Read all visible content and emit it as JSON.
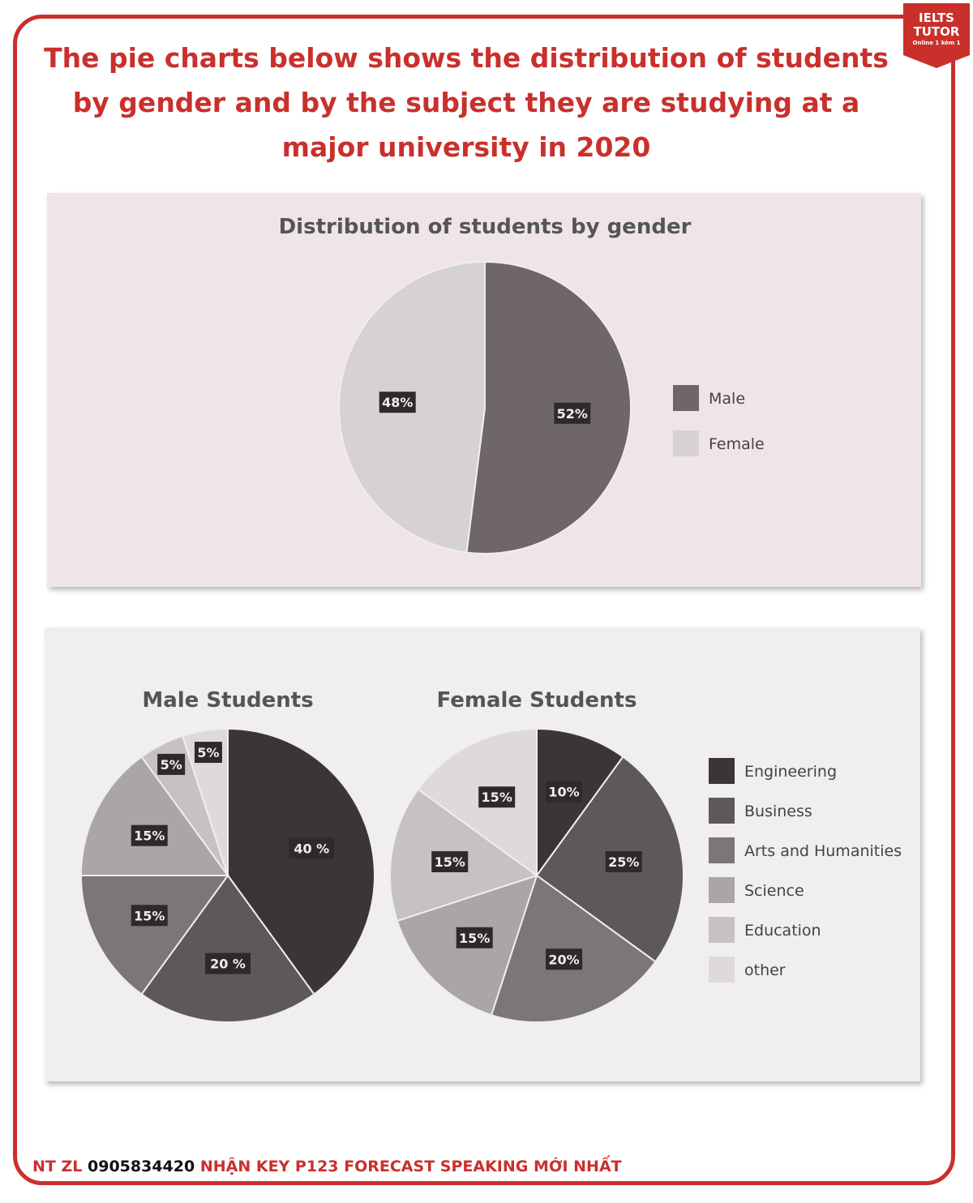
{
  "title": "The pie charts below shows the distribution of students by gender and by the subject they are studying at a major university in 2020",
  "logo": {
    "line1": "IELTS",
    "line2": "TUTOR",
    "line3": "Online 1 kèm 1"
  },
  "footer": {
    "prefix": "NT ZL",
    "phone": "0905834420",
    "text": "NHẬN KEY P123 FORECAST SPEAKING MỚI NHẤT"
  },
  "chart_data": [
    {
      "type": "pie",
      "title": "Distribution of students by gender",
      "categories": [
        "Male",
        "Female"
      ],
      "values": [
        52,
        48
      ],
      "labels": [
        "52%",
        "48%"
      ],
      "colors": [
        "#6e6668",
        "#d6d1d3"
      ],
      "legend": "right"
    },
    {
      "type": "pie",
      "title": "Male Students",
      "categories": [
        "Engineering",
        "Business",
        "Arts and Humanities",
        "Science",
        "Education",
        "other"
      ],
      "values": [
        40,
        20,
        15,
        15,
        5,
        5
      ],
      "labels": [
        "40 %",
        "20 %",
        "15%",
        "15%",
        "5%",
        "5%"
      ],
      "colors": [
        "#3b3536",
        "#5d585c",
        "#7a767a",
        "#aaa5a8",
        "#c6c2c4",
        "#dedadb"
      ],
      "legend": "right"
    },
    {
      "type": "pie",
      "title": "Female Students",
      "categories": [
        "Engineering",
        "Business",
        "Arts and Humanities",
        "Science",
        "Education",
        "other"
      ],
      "values": [
        10,
        25,
        20,
        15,
        15,
        15
      ],
      "labels": [
        "10%",
        "25%",
        "20%",
        "15%",
        "15%",
        "15%"
      ],
      "colors": [
        "#3b3536",
        "#5d585c",
        "#7a767a",
        "#aaa5a8",
        "#c6c2c4",
        "#dedadb"
      ],
      "legend": "right"
    }
  ]
}
